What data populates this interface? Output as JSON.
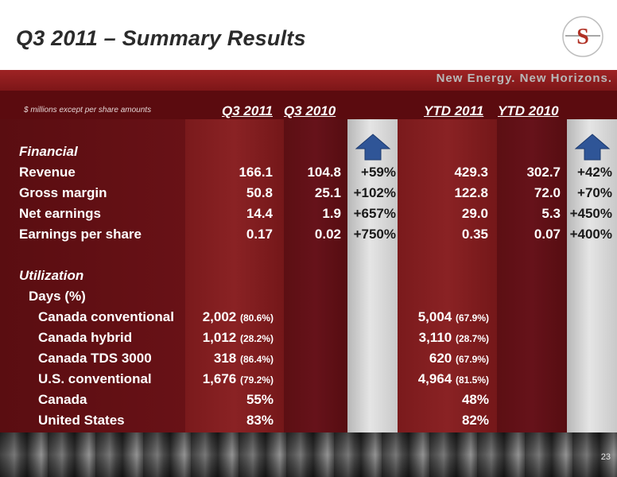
{
  "title": "Q3 2011 – Summary Results",
  "tagline": "New Energy. New Horizons.",
  "logo_letter": "S",
  "note": "$ millions except per share amounts",
  "columns": {
    "q3_2011": "Q3 2011",
    "q3_2010": "Q3 2010",
    "ytd_2011": "YTD  2011",
    "ytd_2010": "YTD 2010"
  },
  "financial": {
    "heading": "Financial",
    "rows": [
      {
        "label": "Revenue",
        "q3_2011": "166.1",
        "q3_2010": "104.8",
        "q3_change": "+59%",
        "ytd_2011": "429.3",
        "ytd_2010": "302.7",
        "ytd_change": "+42%"
      },
      {
        "label": "Gross margin",
        "q3_2011": "50.8",
        "q3_2010": "25.1",
        "q3_change": "+102%",
        "ytd_2011": "122.8",
        "ytd_2010": "72.0",
        "ytd_change": "+70%"
      },
      {
        "label": "Net earnings",
        "q3_2011": "14.4",
        "q3_2010": "1.9",
        "q3_change": "+657%",
        "ytd_2011": "29.0",
        "ytd_2010": "5.3",
        "ytd_change": "+450%"
      },
      {
        "label": "Earnings per share",
        "q3_2011": "0.17",
        "q3_2010": "0.02",
        "q3_change": "+750%",
        "ytd_2011": "0.35",
        "ytd_2010": "0.07",
        "ytd_change": "+400%"
      }
    ]
  },
  "utilization": {
    "heading": "Utilization",
    "subheading": "Days (%)",
    "rows": [
      {
        "label": "Canada conventional",
        "q3_value": "2,002",
        "q3_pct": "(80.6%)",
        "ytd_value": "5,004",
        "ytd_pct": "(67.9%)"
      },
      {
        "label": "Canada hybrid",
        "q3_value": "1,012",
        "q3_pct": "(28.2%)",
        "ytd_value": "3,110",
        "ytd_pct": "(28.7%)"
      },
      {
        "label": "Canada TDS 3000",
        "q3_value": "318",
        "q3_pct": "(86.4%)",
        "ytd_value": "620",
        "ytd_pct": "(67.9%)"
      },
      {
        "label": "U.S. conventional",
        "q3_value": "1,676",
        "q3_pct": "(79.2%)",
        "ytd_value": "4,964",
        "ytd_pct": "(81.5%)"
      },
      {
        "label": "Canada",
        "q3_value": "55%",
        "q3_pct": "",
        "ytd_value": "48%",
        "ytd_pct": ""
      },
      {
        "label": "United States",
        "q3_value": "83%",
        "q3_pct": "",
        "ytd_value": "82%",
        "ytd_pct": ""
      }
    ]
  },
  "arrows": {
    "q3": "up-arrow-icon",
    "ytd": "up-arrow-icon",
    "color": "#2f5597"
  },
  "page_number": "23"
}
